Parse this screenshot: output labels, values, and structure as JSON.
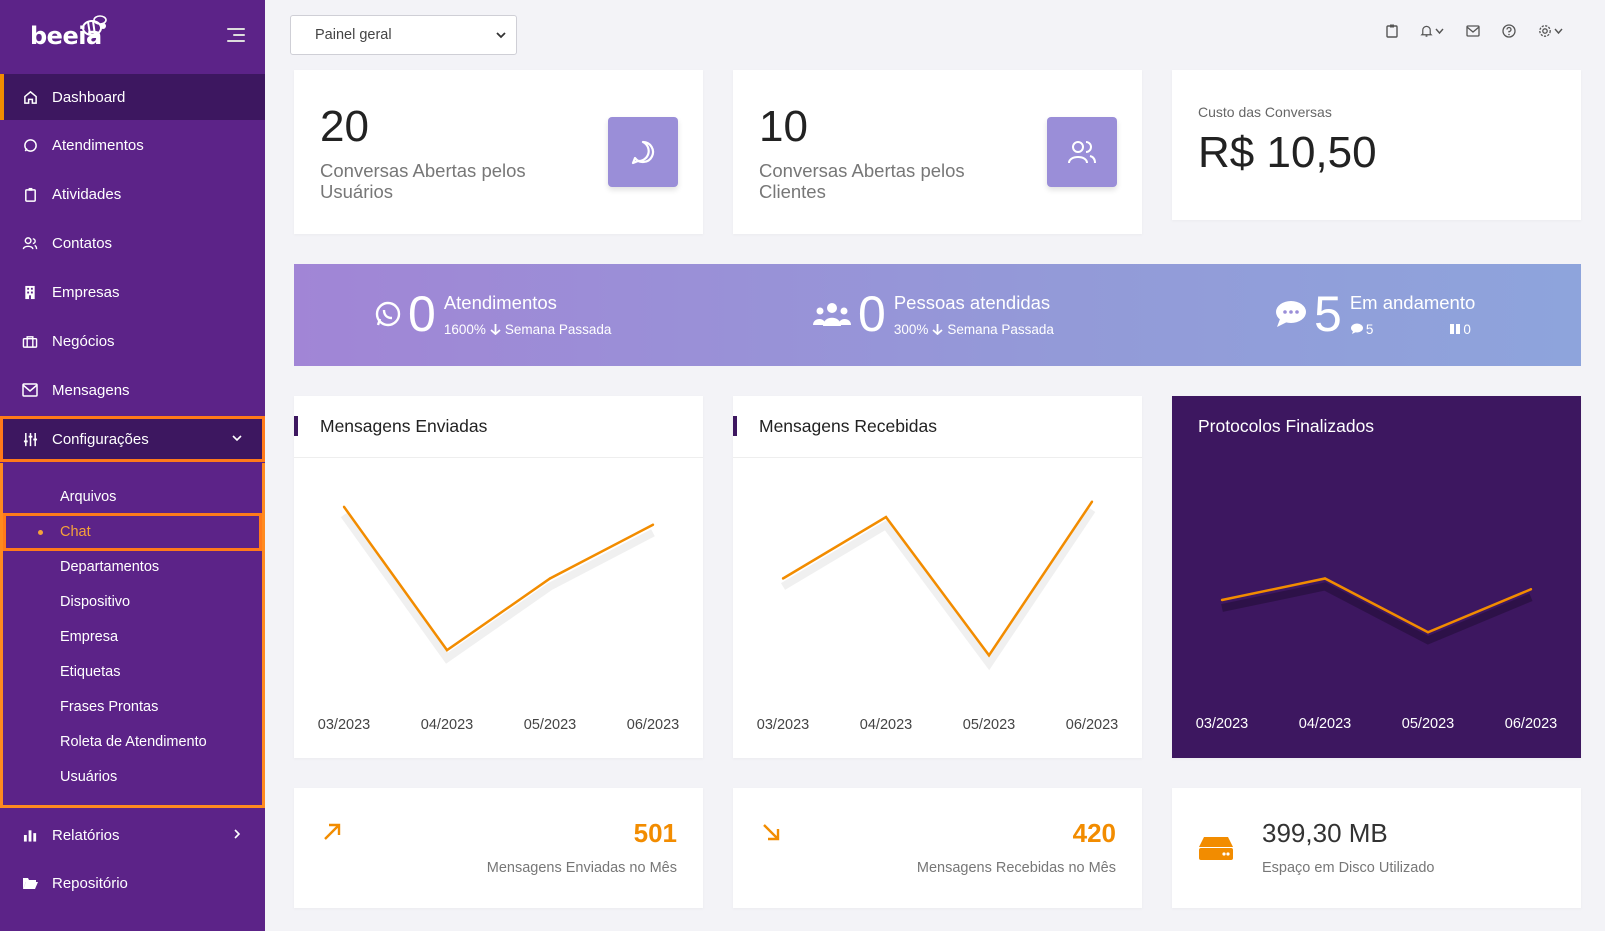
{
  "app": {
    "logo": "beeia"
  },
  "sidebar": {
    "items": [
      {
        "label": "Dashboard",
        "icon": "home-icon"
      },
      {
        "label": "Atendimentos",
        "icon": "whatsapp-icon"
      },
      {
        "label": "Atividades",
        "icon": "clipboard-icon"
      },
      {
        "label": "Contatos",
        "icon": "users-icon"
      },
      {
        "label": "Empresas",
        "icon": "building-icon"
      },
      {
        "label": "Negócios",
        "icon": "briefcase-icon"
      },
      {
        "label": "Mensagens",
        "icon": "mail-icon"
      },
      {
        "label": "Configurações",
        "icon": "sliders-icon"
      },
      {
        "label": "Relatórios",
        "icon": "bar-chart-icon"
      },
      {
        "label": "Repositório",
        "icon": "folder-open-icon"
      }
    ],
    "submenu": [
      "Arquivos",
      "Chat",
      "Departamentos",
      "Dispositivo",
      "Empresa",
      "Etiquetas",
      "Frases Prontas",
      "Roleta de Atendimento",
      "Usuários"
    ]
  },
  "topbar": {
    "select_value": "Painel geral"
  },
  "cards": {
    "users": {
      "value": "20",
      "label": "Conversas Abertas pelos Usuários"
    },
    "clients": {
      "value": "10",
      "label": "Conversas Abertas pelos Clientes"
    },
    "cost": {
      "label": "Custo das Conversas",
      "value": "R$ 10,50"
    }
  },
  "banner": {
    "attend": {
      "value": "0",
      "label": "Atendimentos",
      "pct": "1600%",
      "period": "Semana Passada"
    },
    "people": {
      "value": "0",
      "label": "Pessoas atendidas",
      "pct": "300%",
      "period": "Semana Passada"
    },
    "progress": {
      "value": "5",
      "label": "Em andamento",
      "chat_count": "5",
      "paused_count": "0"
    }
  },
  "chart_data": [
    {
      "type": "line",
      "title": "Mensagens Enviadas",
      "categories": [
        "03/2023",
        "04/2023",
        "05/2023",
        "06/2023"
      ],
      "values": [
        5,
        1,
        3,
        4.5
      ],
      "ylim": [
        0,
        6
      ]
    },
    {
      "type": "line",
      "title": "Mensagens Recebidas",
      "categories": [
        "03/2023",
        "04/2023",
        "05/2023",
        "06/2023"
      ],
      "values": [
        3.5,
        5.5,
        1,
        6
      ],
      "ylim": [
        0,
        7
      ]
    },
    {
      "type": "line",
      "title": "Protocolos Finalizados",
      "categories": [
        "03/2023",
        "04/2023",
        "05/2023",
        "06/2023"
      ],
      "values": [
        2,
        3,
        0.5,
        2.5
      ],
      "ylim": [
        -2,
        8
      ]
    }
  ],
  "bottom": {
    "sent": {
      "value": "501",
      "label": "Mensagens Enviadas no Mês"
    },
    "received": {
      "value": "420",
      "label": "Mensagens Recebidas no Mês"
    },
    "disk": {
      "value": "399,30 MB",
      "label": "Espaço em Disco Utilizado"
    }
  },
  "colors": {
    "sidebar": "#5c2388",
    "sidebar_active": "#3d1760",
    "accent": "#f28c00",
    "highlight": "#ff7a1a",
    "banner": "#9a8ed8",
    "dark_card": "#3d1760"
  }
}
